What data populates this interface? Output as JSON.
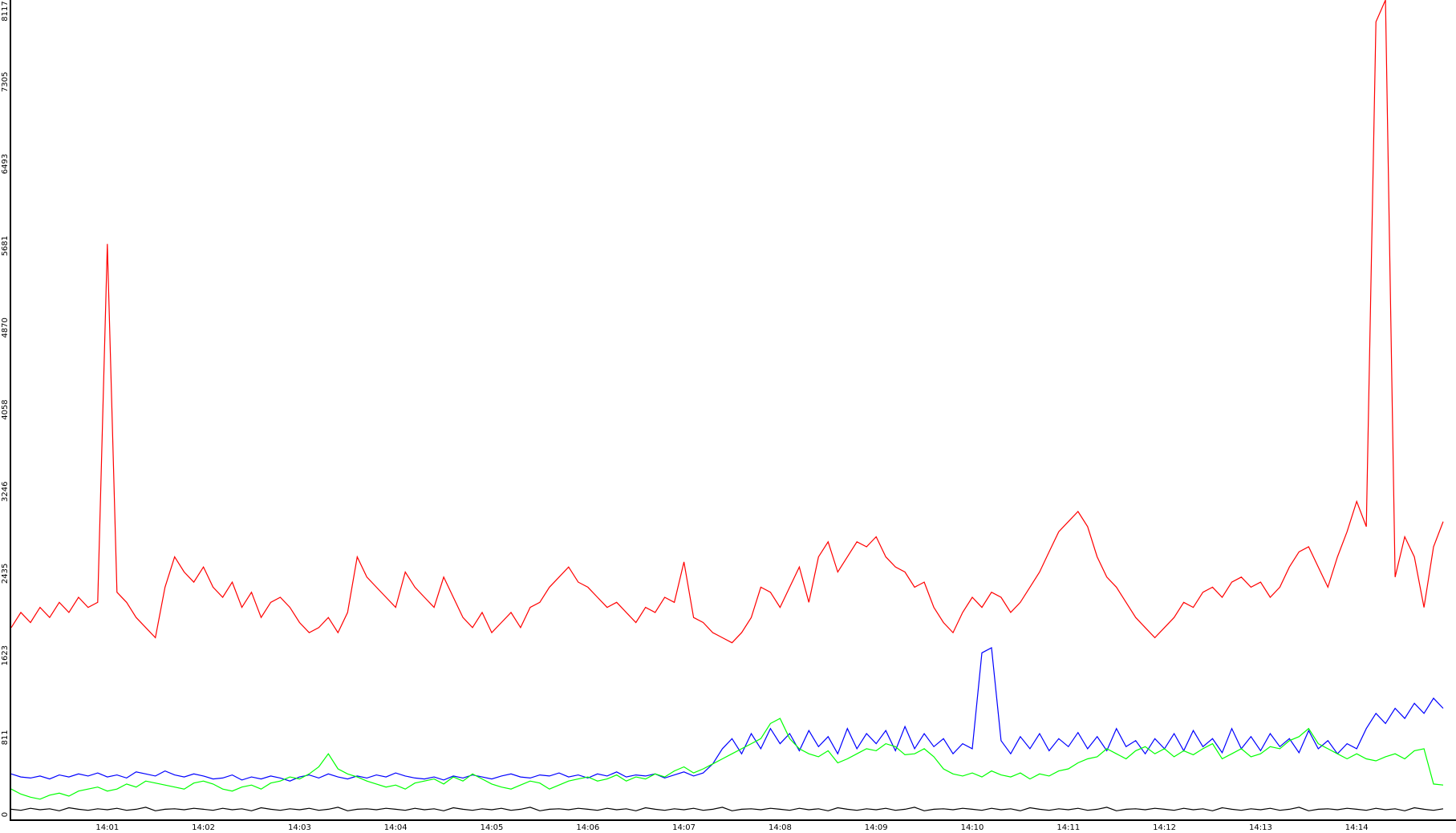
{
  "chart_data": {
    "type": "line",
    "categories": [
      null,
      null,
      null,
      null,
      null,
      null,
      null,
      null,
      null,
      null,
      "14:01",
      null,
      null,
      null,
      null,
      null,
      null,
      null,
      null,
      null,
      "14:02",
      null,
      null,
      null,
      null,
      null,
      null,
      null,
      null,
      null,
      "14:03",
      null,
      null,
      null,
      null,
      null,
      null,
      null,
      null,
      null,
      "14:04",
      null,
      null,
      null,
      null,
      null,
      null,
      null,
      null,
      null,
      "14:05",
      null,
      null,
      null,
      null,
      null,
      null,
      null,
      null,
      null,
      "14:06",
      null,
      null,
      null,
      null,
      null,
      null,
      null,
      null,
      null,
      "14:07",
      null,
      null,
      null,
      null,
      null,
      null,
      null,
      null,
      null,
      "14:08",
      null,
      null,
      null,
      null,
      null,
      null,
      null,
      null,
      null,
      "14:09",
      null,
      null,
      null,
      null,
      null,
      null,
      null,
      null,
      null,
      "14:10",
      null,
      null,
      null,
      null,
      null,
      null,
      null,
      null,
      null,
      "14:11",
      null,
      null,
      null,
      null,
      null,
      null,
      null,
      null,
      null,
      "14:12",
      null,
      null,
      null,
      null,
      null,
      null,
      null,
      null,
      null,
      "14:13",
      null,
      null,
      null,
      null,
      null,
      null,
      null,
      null,
      null,
      "14:14",
      null,
      null,
      null,
      null,
      null,
      null,
      null,
      null,
      null
    ],
    "series": [
      {
        "color": "#ff0000",
        "values": [
          1900,
          2050,
          1950,
          2100,
          2000,
          2150,
          2050,
          2200,
          2100,
          2150,
          5700,
          2250,
          2150,
          2000,
          1900,
          1800,
          2300,
          2600,
          2450,
          2350,
          2500,
          2300,
          2200,
          2350,
          2100,
          2250,
          2000,
          2150,
          2200,
          2100,
          1950,
          1850,
          1900,
          2000,
          1850,
          2050,
          2600,
          2400,
          2300,
          2200,
          2100,
          2450,
          2300,
          2200,
          2100,
          2400,
          2200,
          2000,
          1900,
          2050,
          1850,
          1950,
          2050,
          1900,
          2100,
          2150,
          2300,
          2400,
          2500,
          2350,
          2300,
          2200,
          2100,
          2150,
          2050,
          1950,
          2100,
          2050,
          2200,
          2150,
          2550,
          2000,
          1950,
          1850,
          1800,
          1750,
          1850,
          2000,
          2300,
          2250,
          2100,
          2300,
          2500,
          2150,
          2600,
          2750,
          2450,
          2600,
          2750,
          2700,
          2800,
          2600,
          2500,
          2450,
          2300,
          2350,
          2100,
          1950,
          1850,
          2050,
          2200,
          2100,
          2250,
          2200,
          2050,
          2150,
          2300,
          2450,
          2650,
          2850,
          2950,
          3050,
          2900,
          2600,
          2400,
          2300,
          2150,
          2000,
          1900,
          1800,
          1900,
          2000,
          2150,
          2100,
          2250,
          2300,
          2200,
          2350,
          2400,
          2300,
          2350,
          2200,
          2300,
          2500,
          2650,
          2700,
          2500,
          2300,
          2600,
          2850,
          3150,
          2900,
          7900,
          8117,
          2400,
          2800,
          2600,
          2100,
          2700,
          2950
        ]
      },
      {
        "color": "#0000ff",
        "values": [
          450,
          420,
          410,
          430,
          400,
          440,
          420,
          450,
          430,
          460,
          420,
          440,
          410,
          470,
          450,
          430,
          480,
          440,
          420,
          450,
          430,
          400,
          410,
          440,
          390,
          420,
          400,
          430,
          410,
          380,
          420,
          440,
          410,
          450,
          420,
          400,
          430,
          410,
          440,
          420,
          460,
          430,
          410,
          400,
          420,
          390,
          430,
          410,
          440,
          420,
          400,
          430,
          450,
          420,
          410,
          440,
          430,
          460,
          420,
          440,
          410,
          450,
          430,
          470,
          420,
          440,
          430,
          450,
          410,
          440,
          470,
          430,
          460,
          550,
          700,
          800,
          650,
          850,
          700,
          900,
          750,
          850,
          680,
          880,
          720,
          820,
          650,
          900,
          700,
          850,
          750,
          880,
          680,
          920,
          700,
          850,
          720,
          800,
          650,
          750,
          700,
          1650,
          1700,
          780,
          650,
          820,
          700,
          850,
          680,
          800,
          720,
          860,
          700,
          820,
          680,
          900,
          720,
          780,
          650,
          800,
          700,
          850,
          680,
          880,
          720,
          800,
          660,
          900,
          700,
          820,
          680,
          850,
          720,
          800,
          660,
          880,
          700,
          780,
          650,
          750,
          700,
          900,
          1050,
          950,
          1100,
          1000,
          1150,
          1050,
          1200,
          1100
        ]
      },
      {
        "color": "#00ff00",
        "values": [
          300,
          250,
          220,
          200,
          240,
          260,
          230,
          280,
          300,
          320,
          280,
          300,
          350,
          320,
          380,
          360,
          340,
          320,
          300,
          360,
          380,
          350,
          300,
          280,
          320,
          340,
          300,
          360,
          380,
          420,
          400,
          450,
          520,
          650,
          500,
          450,
          420,
          380,
          350,
          320,
          340,
          300,
          360,
          380,
          400,
          350,
          420,
          380,
          450,
          400,
          350,
          320,
          300,
          340,
          380,
          360,
          300,
          340,
          380,
          400,
          420,
          380,
          400,
          440,
          380,
          420,
          400,
          450,
          420,
          480,
          520,
          460,
          500,
          550,
          600,
          650,
          700,
          750,
          800,
          950,
          1000,
          800,
          700,
          650,
          620,
          680,
          560,
          600,
          650,
          700,
          680,
          750,
          720,
          640,
          650,
          700,
          620,
          500,
          450,
          430,
          460,
          420,
          480,
          440,
          420,
          460,
          400,
          450,
          430,
          480,
          500,
          560,
          600,
          620,
          700,
          650,
          600,
          680,
          720,
          650,
          700,
          620,
          680,
          640,
          700,
          750,
          600,
          650,
          700,
          620,
          650,
          720,
          700,
          780,
          820,
          900,
          750,
          700,
          650,
          600,
          650,
          600,
          580,
          620,
          650,
          600,
          680,
          700,
          350,
          340
        ]
      },
      {
        "color": "#000000",
        "values": [
          100,
          90,
          110,
          95,
          105,
          85,
          115,
          100,
          90,
          105,
          95,
          110,
          90,
          100,
          120,
          85,
          100,
          105,
          95,
          110,
          100,
          90,
          110,
          95,
          105,
          85,
          115,
          100,
          90,
          105,
          95,
          110,
          90,
          100,
          120,
          85,
          100,
          105,
          95,
          110,
          100,
          90,
          110,
          95,
          105,
          85,
          115,
          100,
          90,
          105,
          95,
          110,
          90,
          100,
          120,
          85,
          100,
          105,
          95,
          110,
          100,
          90,
          110,
          95,
          105,
          85,
          115,
          100,
          90,
          105,
          95,
          110,
          90,
          100,
          120,
          85,
          100,
          105,
          95,
          110,
          100,
          90,
          110,
          95,
          105,
          85,
          115,
          100,
          90,
          105,
          95,
          110,
          90,
          100,
          120,
          85,
          100,
          105,
          95,
          110,
          100,
          90,
          110,
          95,
          105,
          85,
          115,
          100,
          90,
          105,
          95,
          110,
          90,
          100,
          120,
          85,
          100,
          105,
          95,
          110,
          100,
          90,
          110,
          95,
          105,
          85,
          115,
          100,
          90,
          105,
          95,
          110,
          90,
          100,
          120,
          85,
          100,
          105,
          95,
          110,
          100,
          90,
          110,
          95,
          105,
          85,
          115,
          100,
          90,
          105
        ]
      }
    ],
    "ylim": [
      0,
      8117
    ],
    "yticks": [
      0,
      811,
      1623,
      2435,
      3246,
      4058,
      4870,
      5681,
      6493,
      7305,
      8117
    ],
    "grid": false
  }
}
